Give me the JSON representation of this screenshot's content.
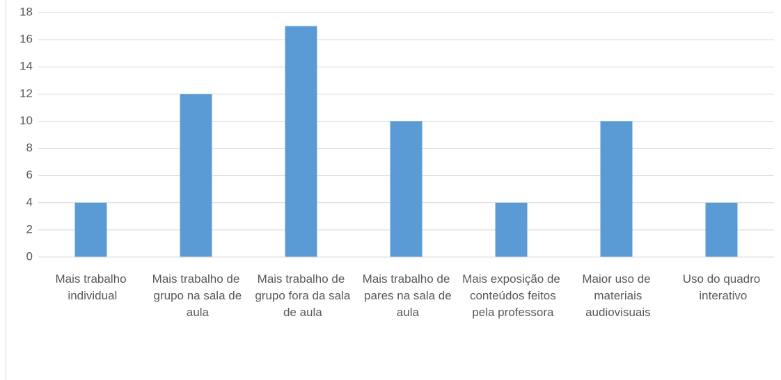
{
  "chart_data": {
    "type": "bar",
    "categories": [
      "Mais trabalho individual",
      "Mais trabalho de grupo na sala de aula",
      "Mais trabalho de grupo fora da sala de aula",
      "Mais trabalho de pares na sala de aula",
      "Mais exposição de conteúdos feitos pela professora",
      "Maior uso de materiais audiovisuais",
      "Uso do quadro interativo"
    ],
    "values": [
      4,
      12,
      17,
      10,
      4,
      10,
      4
    ],
    "color": "#5b9bd5",
    "ylim": [
      0,
      18
    ],
    "yticks": [
      0,
      2,
      4,
      6,
      8,
      10,
      12,
      14,
      16,
      18
    ],
    "grid": true
  }
}
